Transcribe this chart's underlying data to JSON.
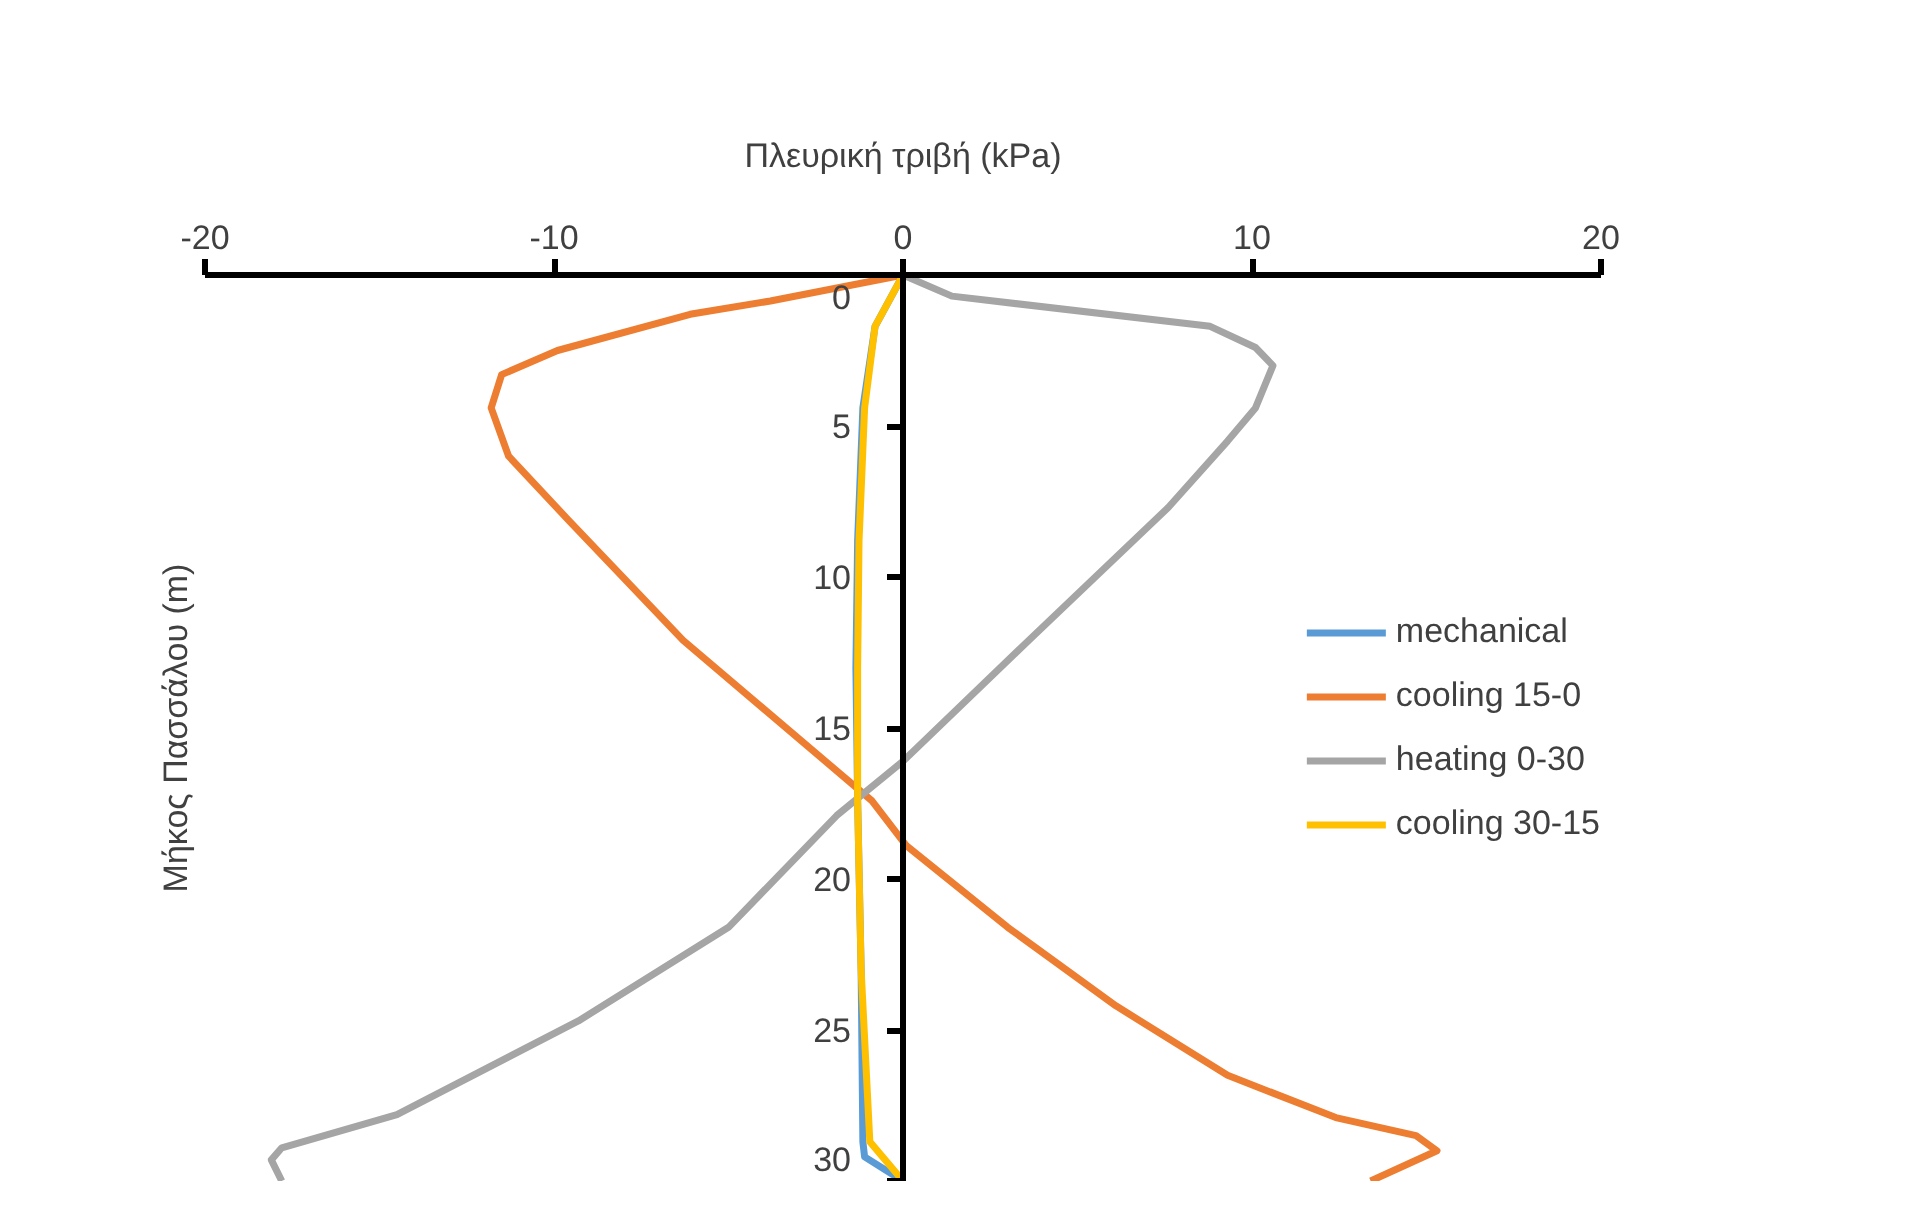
{
  "chart_data": {
    "type": "line",
    "xlabel": "Πλευρική τριβή (kPa)",
    "ylabel": "Μήκος Πασσάλου (m)",
    "xlim": [
      -20,
      20
    ],
    "xticks": [
      -20,
      -10,
      0,
      10,
      20
    ],
    "ylim": [
      30,
      0
    ],
    "yticks": [
      0,
      5,
      10,
      15,
      20,
      25,
      30
    ],
    "grid": false,
    "legend": "right",
    "marker": "none",
    "line_style": "solid",
    "series": [
      {
        "name": "mechanical",
        "color": "#5b9bd5",
        "x": [
          0,
          -0.8,
          -1.15,
          -1.3,
          -1.35,
          -1.3,
          -1.2,
          -1.15,
          -1.1,
          0
        ],
        "values": [
          0,
          1.7,
          4.4,
          8.8,
          13,
          17.4,
          23,
          28.7,
          29.2,
          30
        ]
      },
      {
        "name": "cooling 15-0",
        "color": "#ed7d31",
        "x": [
          0,
          -3.8,
          -6.1,
          -9.9,
          -11.5,
          -11.8,
          -11.3,
          -9.6,
          -6.3,
          -0.9,
          0.1,
          3.0,
          6.1,
          9.3,
          12.4,
          14.7,
          15.3,
          13.4
        ],
        "values": [
          0,
          0.86,
          1.3,
          2.5,
          3.3,
          4.4,
          6.0,
          8.1,
          12.1,
          17.4,
          18.9,
          21.6,
          24.2,
          26.5,
          27.9,
          28.5,
          29.0,
          30
        ]
      },
      {
        "name": "heating 0-30",
        "color": "#a5a5a5",
        "x": [
          0,
          1.4,
          8.8,
          10.1,
          10.6,
          10.1,
          9.3,
          7.6,
          3.6,
          0,
          -1.9,
          -5.0,
          -9.3,
          -14.5,
          -17.8,
          -18.1,
          -17.8
        ],
        "values": [
          0,
          0.7,
          1.7,
          2.4,
          3.0,
          4.4,
          5.5,
          7.7,
          12.1,
          16.1,
          17.9,
          21.6,
          24.7,
          27.8,
          28.9,
          29.3,
          30
        ]
      },
      {
        "name": "cooling 30-15",
        "color": "#ffc000",
        "x": [
          0,
          -0.8,
          -1.1,
          -1.26,
          -1.3,
          -1.3,
          -1.2,
          -0.95,
          0
        ],
        "values": [
          0,
          1.7,
          4.4,
          8.8,
          13,
          17.4,
          23,
          28.7,
          30
        ]
      }
    ]
  }
}
